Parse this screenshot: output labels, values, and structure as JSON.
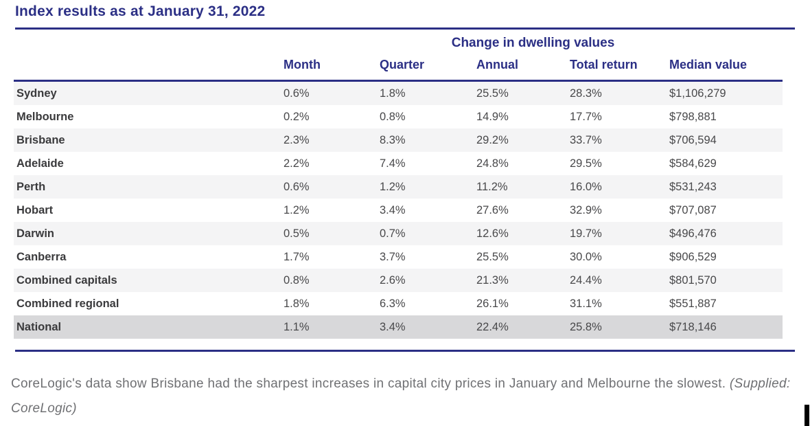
{
  "page": {
    "title": "Index results as at January 31, 2022",
    "caption_main": "CoreLogic's data show Brisbane had the sharpest increases in capital city prices in January and Melbourne the slowest. ",
    "caption_credit": "(Supplied: CoreLogic)"
  },
  "colors": {
    "navy_accent": "#2b2f85",
    "row_stripe": "#f4f4f5",
    "national_row_highlight": "#d8d8da",
    "label_text": "#3a3a3c",
    "value_text": "#48484a",
    "caption_text": "#6f7073",
    "caret": "#000000"
  },
  "chart_data": {
    "type": "table",
    "title": "Index results as at January 31, 2022",
    "group_header": "Change in dwelling values",
    "columns": [
      "",
      "Month",
      "Quarter",
      "Annual",
      "Total return",
      "Median value"
    ],
    "rows": [
      {
        "label": "Sydney",
        "values": [
          "0.6%",
          "1.8%",
          "25.5%",
          "28.3%",
          "$1,106,279"
        ],
        "highlight": false
      },
      {
        "label": "Melbourne",
        "values": [
          "0.2%",
          "0.8%",
          "14.9%",
          "17.7%",
          "$798,881"
        ],
        "highlight": false
      },
      {
        "label": "Brisbane",
        "values": [
          "2.3%",
          "8.3%",
          "29.2%",
          "33.7%",
          "$706,594"
        ],
        "highlight": false
      },
      {
        "label": "Adelaide",
        "values": [
          "2.2%",
          "7.4%",
          "24.8%",
          "29.5%",
          "$584,629"
        ],
        "highlight": false
      },
      {
        "label": "Perth",
        "values": [
          "0.6%",
          "1.2%",
          "11.2%",
          "16.0%",
          "$531,243"
        ],
        "highlight": false
      },
      {
        "label": "Hobart",
        "values": [
          "1.2%",
          "3.4%",
          "27.6%",
          "32.9%",
          "$707,087"
        ],
        "highlight": false
      },
      {
        "label": "Darwin",
        "values": [
          "0.5%",
          "0.7%",
          "12.6%",
          "19.7%",
          "$496,476"
        ],
        "highlight": false
      },
      {
        "label": "Canberra",
        "values": [
          "1.7%",
          "3.7%",
          "25.5%",
          "30.0%",
          "$906,529"
        ],
        "highlight": false
      },
      {
        "label": "Combined capitals",
        "values": [
          "0.8%",
          "2.6%",
          "21.3%",
          "24.4%",
          "$801,570"
        ],
        "highlight": false
      },
      {
        "label": "Combined regional",
        "values": [
          "1.8%",
          "6.3%",
          "26.1%",
          "31.1%",
          "$551,887"
        ],
        "highlight": false
      },
      {
        "label": "National",
        "values": [
          "1.1%",
          "3.4%",
          "22.4%",
          "25.8%",
          "$718,146"
        ],
        "highlight": true
      }
    ],
    "layout": {
      "striped_rows": "odd rows light gray, National row darker gray",
      "alignment": "all columns left-aligned"
    }
  }
}
